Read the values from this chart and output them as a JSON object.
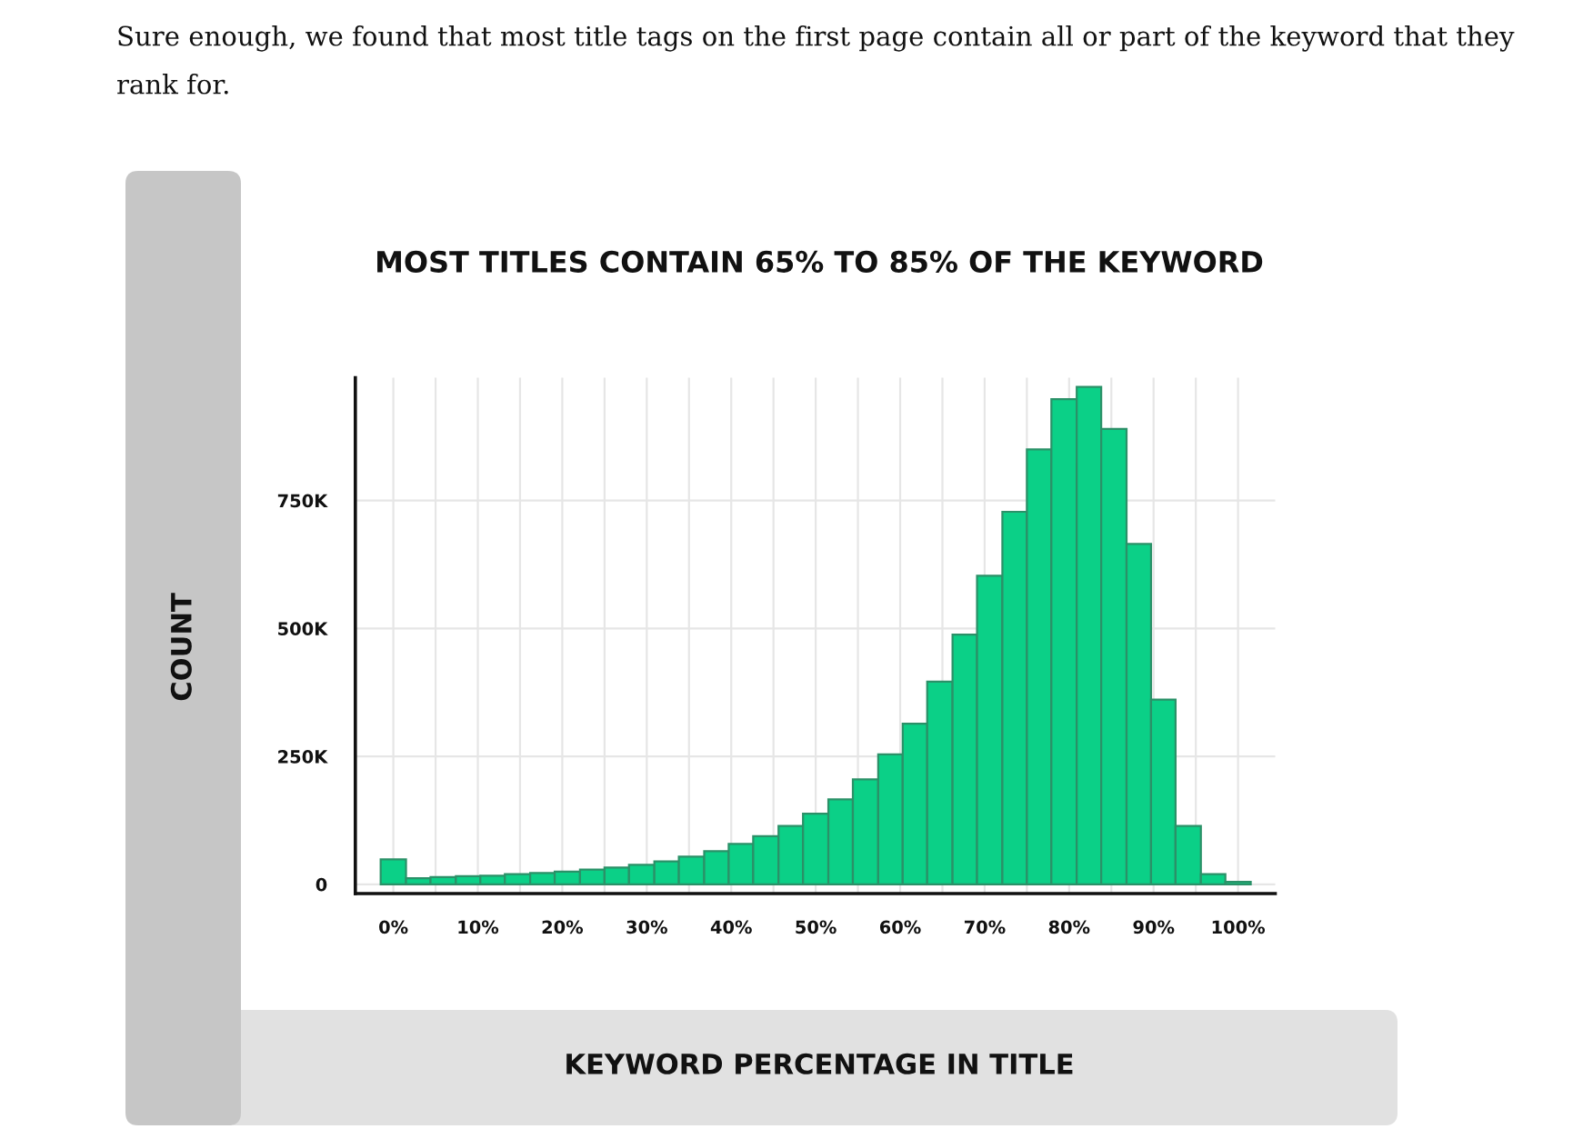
{
  "chart_data": {
    "type": "histogram",
    "title": "MOST TITLES CONTAIN 65% TO 85% OF THE KEYWORD",
    "xlabel": "KEYWORD PERCENTAGE IN TITLE",
    "ylabel": "COUNT",
    "annotations": [
      "Sure enough, we found that most title tags on the first page contain all or part of the keyword that they rank for."
    ],
    "bins": [
      -1.5,
      1.5,
      4.4,
      7.4,
      10.3,
      13.2,
      16.2,
      19.1,
      22.1,
      25.0,
      27.9,
      30.9,
      33.8,
      36.8,
      39.7,
      42.6,
      45.6,
      48.5,
      51.5,
      54.4,
      57.4,
      60.3,
      63.2,
      66.2,
      69.1,
      72.1,
      75.0,
      77.9,
      80.9,
      83.8,
      86.8,
      89.7,
      92.6,
      95.6,
      98.5,
      101.5
    ],
    "values": [
      49000,
      12000,
      14000,
      16000,
      17000,
      20000,
      22000,
      25000,
      29000,
      33000,
      38000,
      45000,
      54000,
      65000,
      79000,
      94000,
      114000,
      138000,
      166000,
      205000,
      254000,
      314000,
      396000,
      488000,
      603000,
      728000,
      850000,
      948000,
      972000,
      890000,
      665000,
      361000,
      114000,
      20000,
      5000
    ],
    "color": "#0bd087",
    "xlim": [
      -4.5,
      104.4
    ],
    "xticks": [
      {
        "value": 0,
        "label": "0%"
      },
      {
        "value": 5,
        "label": null
      },
      {
        "value": 10,
        "label": "10%"
      },
      {
        "value": 15,
        "label": null
      },
      {
        "value": 20,
        "label": "20%"
      },
      {
        "value": 25,
        "label": null
      },
      {
        "value": 30,
        "label": "30%"
      },
      {
        "value": 35,
        "label": null
      },
      {
        "value": 40,
        "label": "40%"
      },
      {
        "value": 45,
        "label": null
      },
      {
        "value": 50,
        "label": "50%"
      },
      {
        "value": 55,
        "label": null
      },
      {
        "value": 60,
        "label": "60%"
      },
      {
        "value": 65,
        "label": null
      },
      {
        "value": 70,
        "label": "70%"
      },
      {
        "value": 75,
        "label": null
      },
      {
        "value": 80,
        "label": "80%"
      },
      {
        "value": 85,
        "label": null
      },
      {
        "value": 90,
        "label": "90%"
      },
      {
        "value": 95,
        "label": null
      },
      {
        "value": 100,
        "label": "100%"
      }
    ],
    "ylim": [
      -18000,
      990000
    ],
    "yticks": [
      0,
      {
        "value": 250000,
        "label": "250K"
      },
      {
        "value": 500000,
        "label": "500K"
      },
      {
        "value": 750000,
        "label": "750K"
      }
    ],
    "grid": true
  }
}
